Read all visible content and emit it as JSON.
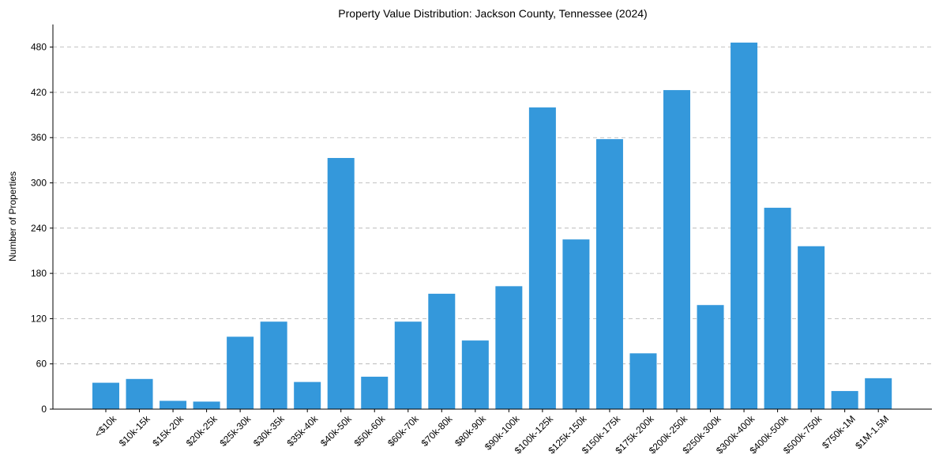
{
  "chart_data": {
    "type": "bar",
    "title": "Property Value Distribution: Jackson County, Tennessee (2024)",
    "xlabel": "",
    "ylabel": "Number of Properties",
    "categories": [
      "<$10k",
      "$10k-15k",
      "$15k-20k",
      "$20k-25k",
      "$25k-30k",
      "$30k-35k",
      "$35k-40k",
      "$40k-50k",
      "$50k-60k",
      "$60k-70k",
      "$70k-80k",
      "$80k-90k",
      "$90k-100k",
      "$100k-125k",
      "$125k-150k",
      "$150k-175k",
      "$175k-200k",
      "$200k-250k",
      "$250k-300k",
      "$300k-400k",
      "$400k-500k",
      "$500k-750k",
      "$750k-1M",
      "$1M-1.5M"
    ],
    "values": [
      35,
      40,
      11,
      10,
      96,
      116,
      36,
      333,
      43,
      116,
      153,
      91,
      163,
      400,
      225,
      358,
      74,
      423,
      138,
      486,
      267,
      216,
      24,
      41
    ],
    "ylim": [
      0,
      510
    ],
    "yticks": [
      0,
      60,
      120,
      180,
      240,
      300,
      360,
      420,
      480
    ],
    "bar_color": "#3498db",
    "grid": "y-dashed"
  }
}
